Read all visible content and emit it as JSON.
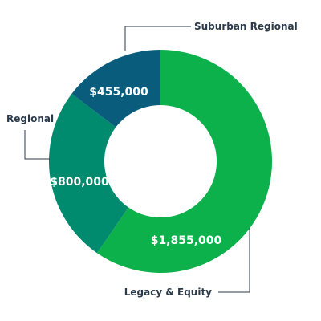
{
  "chart_data": {
    "type": "pie",
    "donut": true,
    "slices": [
      {
        "label": "Legacy & Equity",
        "value": 1855000,
        "value_label": "$1,855,000",
        "color": "#0db14b"
      },
      {
        "label": "Regional",
        "value": 800000,
        "value_label": "$800,000",
        "color": "#008a6e"
      },
      {
        "label": "Suburban Regional",
        "value": 455000,
        "value_label": "$455,000",
        "color": "#0a5c7d"
      }
    ]
  }
}
